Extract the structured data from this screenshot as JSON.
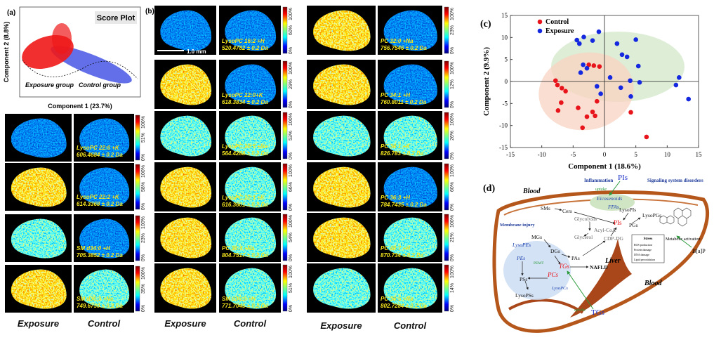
{
  "panel_a": {
    "label": "(a)",
    "title": "Score Plot",
    "xlabel": "Component 1 (23.7%)",
    "ylabel": "Component 2 (8.8%)",
    "exposure_group": "Exposure group",
    "control_group": "Control group"
  },
  "images": {
    "label": "(b)",
    "scale": "1.0 mm",
    "colorbar_max": "100%",
    "colorbar_min": "0%",
    "footer": {
      "exposure": "Exposure",
      "control": "Control"
    },
    "columns": [
      [
        {
          "lipid": "LysoPC 22:6 +K",
          "mz": "606.4684 ± 0.2 Da",
          "mid": "51%"
        },
        {
          "lipid": "LysoPC 22:2 +K",
          "mz": "614.3368 ± 0.2 Da",
          "mid": "58%"
        },
        {
          "lipid": "SM d34:0 +H",
          "mz": "705.3852 ± 0.2 Da",
          "mid": "23%"
        },
        {
          "lipid": "SM d36:3 +Na",
          "mz": "749.6730 ± 0.2 Da",
          "mid": "35%"
        }
      ],
      [
        {
          "lipid": "LysoPC 16:2 +H",
          "mz": "520.4782 ± 0.2 Da",
          "mid": "60%"
        },
        {
          "lipid": "LysoPC 22:0+K",
          "mz": "618.3834 ± 0.2 Da",
          "mid": "29%"
        },
        {
          "lipid": "LysoPC 20:5 +Na",
          "mz": "564.4288 ± 0.2 Da",
          "mid": "53%"
        },
        {
          "lipid": "LysoPC 22:1 +K",
          "mz": "616.3601 ± 0.2 Da",
          "mid": "66%"
        },
        {
          "lipid": "PC 36:4 +Na",
          "mz": "804.7517 ± 0.2 Da",
          "mid": "54%"
        },
        {
          "lipid": "SM d36:0 +H",
          "mz": "771.7045 ± 0.2 Da",
          "mid": "51%"
        }
      ],
      [
        {
          "lipid": "PC 32:0 +Na",
          "mz": "756.7546 ± 0.2 Da",
          "mid": "23%"
        },
        {
          "lipid": "PC 34:1 +H",
          "mz": "760.8011 ± 0.2 Da",
          "mid": "12%"
        },
        {
          "lipid": "PC 36:1 +K",
          "mz": "826.783 ± 0.2 Da",
          "mid": "26%"
        },
        {
          "lipid": "PC 36:3 +H",
          "mz": "784.7435 ± 0.2 Da",
          "mid": "60%"
        },
        {
          "lipid": "PC 40:7 +H",
          "mz": "870.734 ± 0.2 Da",
          "mid": "21%"
        },
        {
          "lipid": "PC 36:5 +Na",
          "mz": "802.7284 ± 0.2 Da",
          "mid": "14%"
        }
      ]
    ]
  },
  "chart_data": {
    "type": "scatter",
    "label": "(c)",
    "xlabel": "Component 1 (18.6%)",
    "ylabel": "Component 2 (9.9%)",
    "xlim": [
      -15,
      15
    ],
    "ylim": [
      -15,
      15
    ],
    "xticks": [
      -15,
      -10,
      -5,
      0,
      5,
      10,
      15
    ],
    "yticks": [
      -15,
      -10,
      -5,
      0,
      5,
      10,
      15
    ],
    "legend": "upper left",
    "series": [
      {
        "name": "Control",
        "color": "#e8141b",
        "x": [
          -7.8,
          -7.5,
          -6.8,
          -6.9,
          -7.4,
          -6.2,
          -4.2,
          -3.5,
          -2.8,
          -1.9,
          -1.5,
          -1.2,
          -2.5,
          -1.7,
          -0.8,
          4.2,
          6.7
        ],
        "values": [
          0.2,
          -0.8,
          -1.5,
          -4.8,
          -6.6,
          -2.2,
          -6.0,
          -10.5,
          -8.0,
          -6.9,
          -7.8,
          -4.5,
          3.8,
          3.6,
          3.4,
          -7.0,
          -12.6
        ]
      },
      {
        "name": "Exposure",
        "color": "#1428e0",
        "x": [
          -4.4,
          -4.0,
          -3.3,
          -1.9,
          -0.9,
          2.0,
          2.8,
          3.6,
          5.0,
          5.4,
          -3.4,
          -2.8,
          -3.8,
          -1.2,
          0.9,
          2.6,
          4.1,
          4.2,
          5.6,
          11.4,
          11.9,
          13.4,
          -0.6
        ],
        "values": [
          9.4,
          8.6,
          10.1,
          9.3,
          11.3,
          8.6,
          6.1,
          5.6,
          9.5,
          3.5,
          3.8,
          3.0,
          2.0,
          -1.1,
          0.9,
          -1.4,
          0.2,
          -3.4,
          -0.2,
          -0.8,
          0.9,
          -4.0,
          -2.8
        ]
      }
    ]
  },
  "diagram": {
    "label": "(d)",
    "blood_top": "Blood",
    "inflammation": "Inflammation",
    "pis_blood": "PIs",
    "uptake_top": "uptake",
    "signaling": "Signaling system disorders",
    "eicosenoids": "Eicosenoids",
    "ffas": "FFAs",
    "sms": "SMs",
    "cers": "Cers",
    "lysopis": "LysoPIs",
    "lysopgs": "LysoPGs",
    "pis_liver": "PIs",
    "pgs": "PGs",
    "membrane": "Membrane injury",
    "glycolysis": "Glycolysis",
    "acylcoa": "Acyl-CoA",
    "glycerol": "Glycerol",
    "cdpdg": "CDP-DG",
    "mgs": "MGs",
    "lysopes": "LysoPEs",
    "dgs": "DGs",
    "pas": "PAs",
    "pes": "PEs",
    "pemt": "PEMT",
    "tgs_liver": "TGs",
    "nafld": "NAFLD",
    "pcs": "PCs",
    "lysopcs": "LysoPCs",
    "liver": "Liver",
    "pss": "PSs",
    "lysopss": "LysoPSs",
    "blood_bottom": "Blood",
    "uptake_bottom": "uptake",
    "tgs_blood": "TGs",
    "metabolic": "Metabolic activation",
    "stress": {
      "title": "Stress",
      "items": [
        "ROS production",
        "Protein damage",
        "DNA damage",
        "Lipid peroxidation"
      ]
    },
    "bap": "B[a]P"
  }
}
